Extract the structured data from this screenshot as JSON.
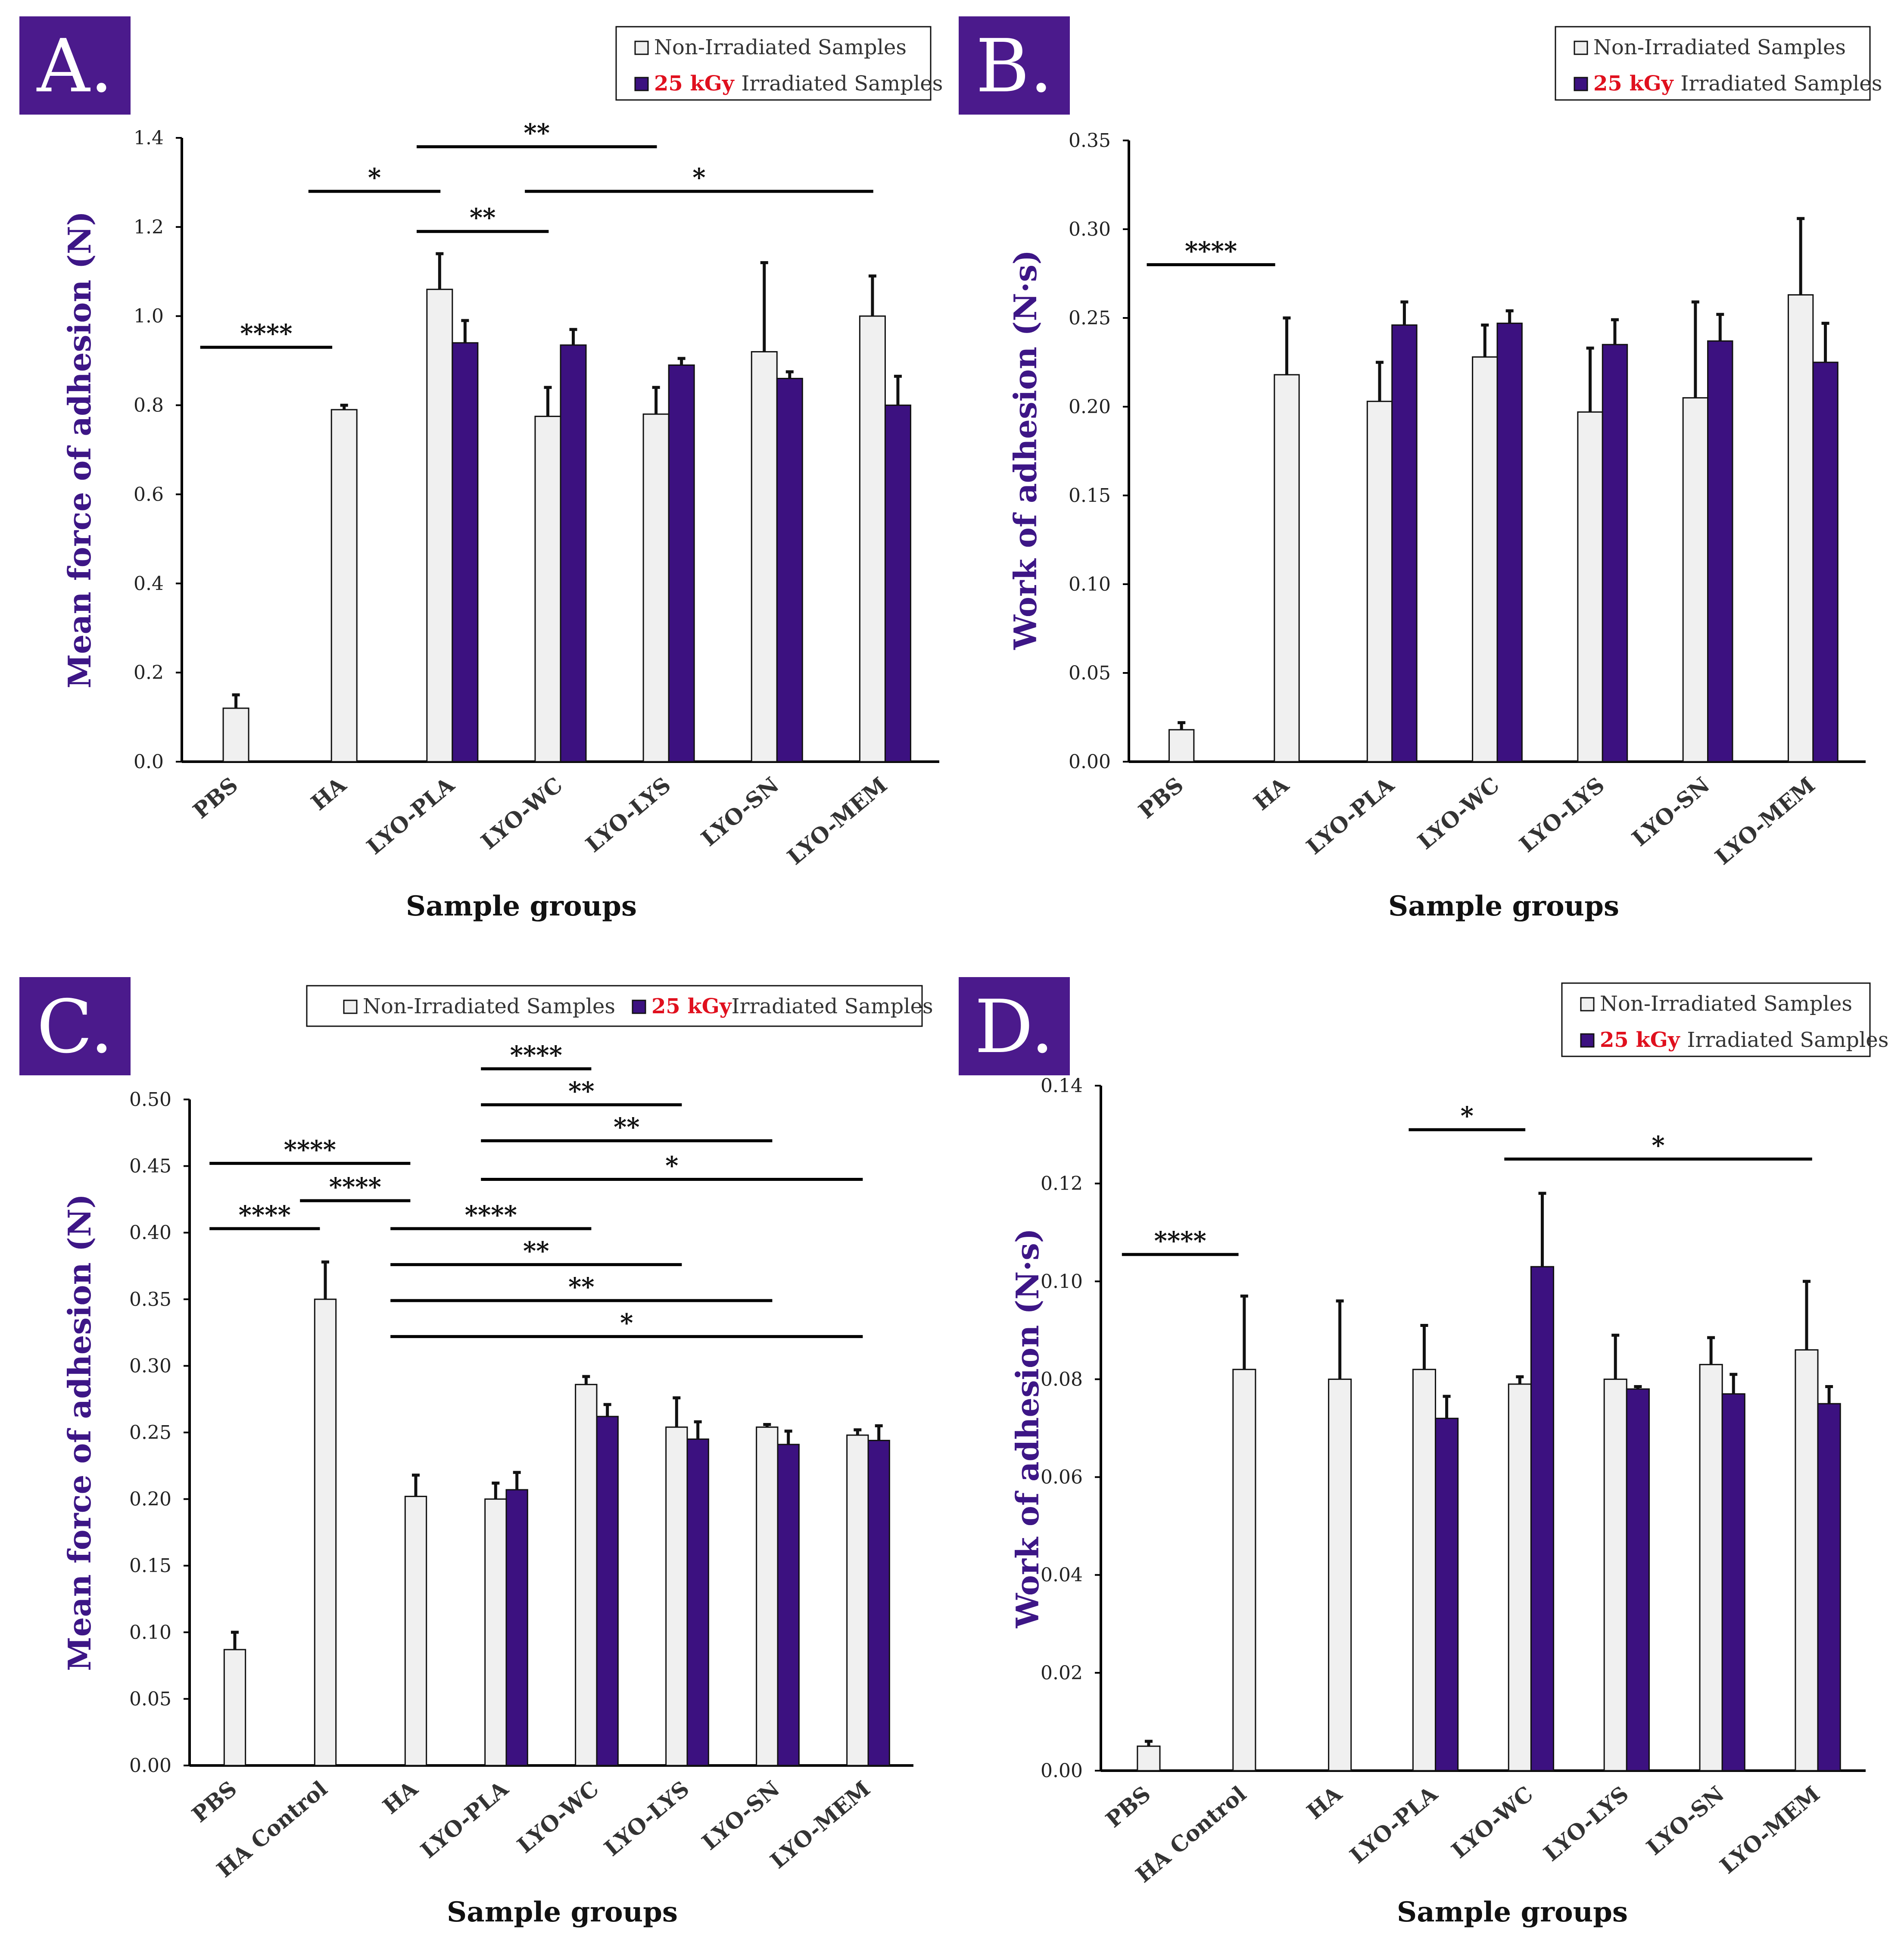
{
  "colors": {
    "non_irradiated": "#f0f0f0",
    "irradiated": "#3c1180",
    "panel_badge": "#4b1a8c",
    "highlight": "#e0101e",
    "ylabel": "#3d1686"
  },
  "legend": {
    "non_irradiated_label": "Non-Irradiated Samples",
    "dose_label": "25 kGy",
    "irradiated_label": "Irradiated Samples"
  },
  "chart_data": [
    {
      "panel": "A.",
      "type": "bar",
      "xlabel": "Sample groups",
      "ylabel": "Mean force of adhesion (N)",
      "ylim": [
        0,
        1.4
      ],
      "yticks": [
        "0.0",
        "0.2",
        "0.4",
        "0.6",
        "0.8",
        "1.0",
        "1.2",
        "1.4"
      ],
      "categories": [
        "PBS",
        "HA",
        "LYO-PLA",
        "LYO-WC",
        "LYO-LYS",
        "LYO-SN",
        "LYO-MEM"
      ],
      "legend_position": "top-right",
      "series": [
        {
          "name": "Non-Irradiated Samples",
          "values": [
            0.12,
            0.79,
            1.06,
            0.775,
            0.78,
            0.92,
            1.0
          ],
          "errors": [
            0.03,
            0.01,
            0.08,
            0.065,
            0.06,
            0.2,
            0.09
          ]
        },
        {
          "name": "25 kGy Irradiated Samples",
          "values": [
            null,
            null,
            0.94,
            0.935,
            0.89,
            0.86,
            0.8
          ],
          "errors": [
            null,
            null,
            0.05,
            0.035,
            0.015,
            0.015,
            0.065
          ]
        }
      ],
      "significance": [
        {
          "label": "****",
          "y": 0.93,
          "from": 0,
          "to": 1
        },
        {
          "label": "*",
          "y": 1.28,
          "from": 1,
          "to": 2
        },
        {
          "label": "**",
          "y": 1.38,
          "from": 2,
          "to": 4
        },
        {
          "label": "**",
          "y": 1.19,
          "from": 2,
          "to": 3
        },
        {
          "label": "*",
          "y": 1.28,
          "from": 3,
          "to": 6
        }
      ]
    },
    {
      "panel": "B.",
      "type": "bar",
      "xlabel": "Sample groups",
      "ylabel": "Work of adhesion (N·s)",
      "ylim": [
        0,
        0.35
      ],
      "yticks": [
        "0.00",
        "0.05",
        "0.10",
        "0.15",
        "0.20",
        "0.25",
        "0.30",
        "0.35"
      ],
      "categories": [
        "PBS",
        "HA",
        "LYO-PLA",
        "LYO-WC",
        "LYO-LYS",
        "LYO-SN",
        "LYO-MEM"
      ],
      "legend_position": "top-right",
      "series": [
        {
          "name": "Non-Irradiated Samples",
          "values": [
            0.018,
            0.218,
            0.203,
            0.228,
            0.197,
            0.205,
            0.263
          ],
          "errors": [
            0.004,
            0.032,
            0.022,
            0.018,
            0.036,
            0.054,
            0.043
          ]
        },
        {
          "name": "25 kGy Irradiated Samples",
          "values": [
            null,
            null,
            0.246,
            0.247,
            0.235,
            0.237,
            0.225
          ],
          "errors": [
            null,
            null,
            0.013,
            0.007,
            0.014,
            0.015,
            0.022
          ]
        }
      ],
      "significance": [
        {
          "label": "****",
          "y": 0.28,
          "from": 0,
          "to": 1
        }
      ]
    },
    {
      "panel": "C.",
      "type": "bar",
      "xlabel": "Sample groups",
      "ylabel": "Mean force of adhesion (N)",
      "ylim": [
        0,
        0.5
      ],
      "yticks": [
        "0.00",
        "0.05",
        "0.10",
        "0.15",
        "0.20",
        "0.25",
        "0.30",
        "0.35",
        "0.40",
        "0.45",
        "0.50"
      ],
      "categories": [
        "PBS",
        "HA Control",
        "HA",
        "LYO-PLA",
        "LYO-WC",
        "LYO-LYS",
        "LYO-SN",
        "LYO-MEM"
      ],
      "legend_position": "top",
      "series": [
        {
          "name": "Non-Irradiated Samples",
          "values": [
            0.087,
            0.35,
            0.202,
            0.2,
            0.286,
            0.254,
            0.254,
            0.248
          ],
          "errors": [
            0.013,
            0.028,
            0.016,
            0.012,
            0.006,
            0.022,
            0.002,
            0.004
          ]
        },
        {
          "name": "25 kGy Irradiated Samples",
          "values": [
            null,
            null,
            null,
            0.207,
            0.262,
            0.245,
            0.241,
            0.244
          ],
          "errors": [
            null,
            null,
            null,
            0.013,
            0.009,
            0.013,
            0.01,
            0.011
          ]
        }
      ],
      "significance": [
        {
          "label": "****",
          "y": 0.452,
          "from": 0,
          "to": 2
        },
        {
          "label": "****",
          "y": 0.403,
          "from": 0,
          "to": 1
        },
        {
          "label": "****",
          "y": 0.424,
          "from": 1,
          "to": 2
        },
        {
          "label": "****",
          "y": 0.523,
          "from": 3,
          "to": 4
        },
        {
          "label": "**",
          "y": 0.496,
          "from": 3,
          "to": 5
        },
        {
          "label": "**",
          "y": 0.469,
          "from": 3,
          "to": 6
        },
        {
          "label": "*",
          "y": 0.44,
          "from": 3,
          "to": 7
        },
        {
          "label": "****",
          "y": 0.403,
          "from": 2,
          "to": 4
        },
        {
          "label": "**",
          "y": 0.376,
          "from": 2,
          "to": 5
        },
        {
          "label": "**",
          "y": 0.349,
          "from": 2,
          "to": 6
        },
        {
          "label": "*",
          "y": 0.322,
          "from": 2,
          "to": 7
        }
      ]
    },
    {
      "panel": "D.",
      "type": "bar",
      "xlabel": "Sample groups",
      "ylabel": "Work of adhesion (N·s)",
      "ylim": [
        0,
        0.14
      ],
      "yticks": [
        "0.00",
        "0.02",
        "0.04",
        "0.06",
        "0.08",
        "0.10",
        "0.12",
        "0.14"
      ],
      "categories": [
        "PBS",
        "HA Control",
        "HA",
        "LYO-PLA",
        "LYO-WC",
        "LYO-LYS",
        "LYO-SN",
        "LYO-MEM"
      ],
      "legend_position": "top-right",
      "series": [
        {
          "name": "Non-Irradiated Samples",
          "values": [
            0.005,
            0.082,
            0.08,
            0.082,
            0.079,
            0.08,
            0.083,
            0.086
          ],
          "errors": [
            0.001,
            0.015,
            0.016,
            0.009,
            0.0015,
            0.009,
            0.0055,
            0.014
          ]
        },
        {
          "name": "25 kGy Irradiated Samples",
          "values": [
            null,
            null,
            null,
            0.072,
            0.103,
            0.078,
            0.077,
            0.075
          ],
          "errors": [
            null,
            null,
            null,
            0.0045,
            0.015,
            0.0005,
            0.004,
            0.0035
          ]
        }
      ],
      "significance": [
        {
          "label": "****",
          "y": 0.1055,
          "from": 0,
          "to": 1
        },
        {
          "label": "*",
          "y": 0.131,
          "from": 3,
          "to": 4
        },
        {
          "label": "*",
          "y": 0.125,
          "from": 4,
          "to": 7
        }
      ]
    }
  ]
}
